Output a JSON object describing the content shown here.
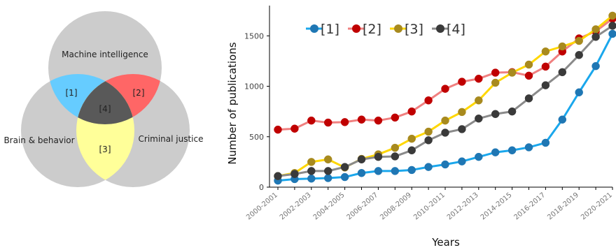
{
  "venn": {
    "sets": [
      {
        "label": "Machine intelligence"
      },
      {
        "label": "Brain & behavior"
      },
      {
        "label": "Criminal justice"
      }
    ],
    "regions": [
      {
        "label": "[1]",
        "color": "#66ccff"
      },
      {
        "label": "[2]",
        "color": "#ff6666"
      },
      {
        "label": "[3]",
        "color": "#ffff99"
      },
      {
        "label": "[4]",
        "color": "#595959"
      }
    ],
    "base_color": "#cccccc"
  },
  "chart_data": {
    "type": "line",
    "title": "",
    "xlabel": "Years",
    "ylabel": "Number of publications",
    "ylim": [
      0,
      1800
    ],
    "yticks": [
      0,
      500,
      1000,
      1500
    ],
    "x": [
      "2000-2001",
      "2001-2002",
      "2002-2003",
      "2003-2004",
      "2004-2005",
      "2005-2006",
      "2006-2007",
      "2007-2008",
      "2008-2009",
      "2009-2010",
      "2010-2011",
      "2011-2012",
      "2012-2013",
      "2013-2014",
      "2014-2015",
      "2015-2016",
      "2016-2017",
      "2017-2018",
      "2018-2019",
      "2019-2020",
      "2020-2021"
    ],
    "xtick_labels": [
      "2000-2001",
      "",
      "2002-2003",
      "",
      "2004-2005",
      "",
      "2006-2007",
      "",
      "2008-2009",
      "",
      "2010-2011",
      "",
      "2012-2013",
      "",
      "2014-2015",
      "",
      "2016-2017",
      "",
      "2018-2019",
      "",
      "2020-2021"
    ],
    "grid": false,
    "legend_position": "top-left",
    "series": [
      {
        "name": "[1]",
        "line_color": "#1aa7ec",
        "marker_color": "#1f77b4",
        "values": [
          65,
          80,
          85,
          90,
          100,
          140,
          160,
          160,
          170,
          200,
          225,
          255,
          300,
          345,
          365,
          395,
          440,
          670,
          940,
          1200,
          1520
        ]
      },
      {
        "name": "[2]",
        "line_color": "#f08080",
        "marker_color": "#c00000",
        "values": [
          570,
          580,
          660,
          640,
          645,
          670,
          660,
          690,
          750,
          860,
          975,
          1045,
          1075,
          1135,
          1140,
          1105,
          1195,
          1345,
          1475,
          1545,
          1670
        ]
      },
      {
        "name": "[3]",
        "line_color": "#ffd700",
        "marker_color": "#a88a1e",
        "values": [
          110,
          140,
          250,
          275,
          195,
          280,
          325,
          390,
          480,
          550,
          660,
          745,
          860,
          1035,
          1135,
          1215,
          1345,
          1395,
          1450,
          1565,
          1700
        ]
      },
      {
        "name": "[4]",
        "line_color": "#8a8a8a",
        "marker_color": "#3a3a3a",
        "values": [
          110,
          130,
          160,
          160,
          200,
          275,
          300,
          305,
          365,
          465,
          540,
          575,
          680,
          725,
          750,
          880,
          1010,
          1140,
          1310,
          1490,
          1600
        ]
      }
    ]
  }
}
